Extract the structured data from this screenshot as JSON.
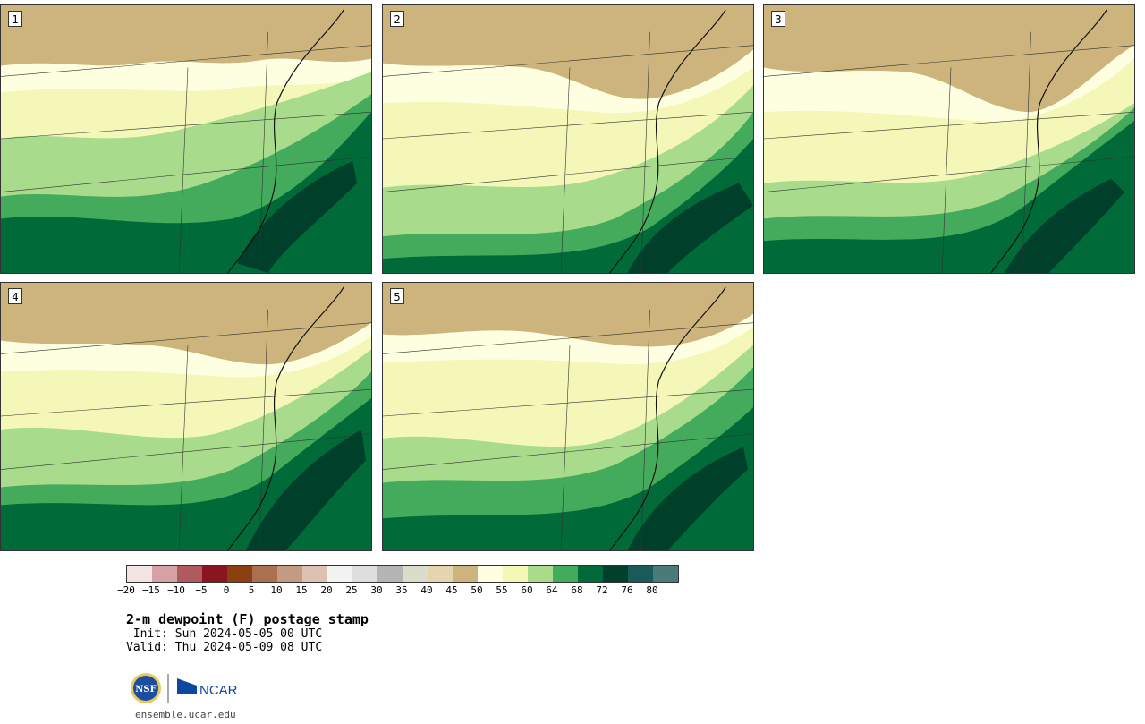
{
  "panels": [
    {
      "label": "1"
    },
    {
      "label": "2"
    },
    {
      "label": "3"
    },
    {
      "label": "4"
    },
    {
      "label": "5"
    }
  ],
  "colorbar": {
    "colors": [
      "#f3e4e4",
      "#d5a0a6",
      "#b05a60",
      "#8a1520",
      "#8a4010",
      "#aa7050",
      "#c49a80",
      "#dec0b0",
      "#f2f2f2",
      "#dedede",
      "#b4b4b4",
      "#dcdccc",
      "#e4d4b0",
      "#ccb47c",
      "#fefee0",
      "#f4f8b4",
      "#a8dc8c",
      "#44aa5c",
      "#006a38",
      "#00402a",
      "#1a5a5a",
      "#4a7a7a"
    ],
    "ticks": [
      "−20",
      "−15",
      "−10",
      "−5",
      "0",
      "5",
      "10",
      "15",
      "20",
      "25",
      "30",
      "35",
      "40",
      "45",
      "50",
      "55",
      "60",
      "64",
      "68",
      "72",
      "76",
      "80"
    ]
  },
  "title": "2-m dewpoint (F) postage stamp",
  "init": " Init: Sun 2024-05-05 00 UTC",
  "valid": "Valid: Thu 2024-05-09 08 UTC",
  "logos": {
    "nsf": "NSF",
    "ncar": "NCAR"
  },
  "url": "ensemble.ucar.edu"
}
